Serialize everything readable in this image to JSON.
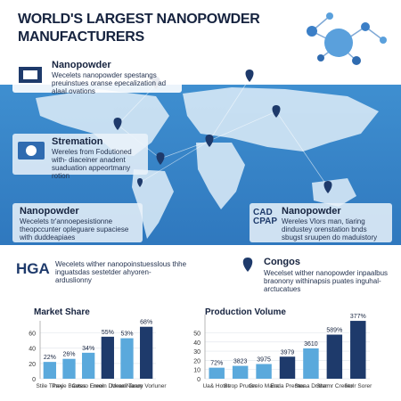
{
  "header": {
    "title": "WORLD'S LARGEST NANOPOWDER MANUFACTURERS"
  },
  "cards": [
    {
      "title": "Nanopowder",
      "text": "Wecelets nanopowder spestangs preuinstues oranse epecalization ad alaal ovations"
    },
    {
      "title": "Stremation",
      "text": "Wereles from Fodutioned with- diaceiner anadent suaduation appeortmany rotion"
    },
    {
      "title": "Nanopowder",
      "text": "Wecelets tr'annoepesistionne theopccunter opleguare supaciese with duddeapiaes"
    },
    {
      "logo": "CAD CPAP",
      "title": "Nanopowder",
      "text": "Wereles Vlors man, tiaring dindustey orenstation bnds sbugst sruupen do maduistory"
    },
    {
      "logo": "HGA",
      "text": "Wecelets wither nanopoinstuesslous thhe inguatsdas sestetder ahyoren- arduslionny"
    },
    {
      "title": "Congos",
      "text": "Wecelset wither nanopowder inpaalbus braonony withinapsis puates inguhal- arctucatues"
    }
  ],
  "chart_data": [
    {
      "type": "bar",
      "title": "Market Share",
      "categories": [
        "Stile Tmey",
        "Paxie Baotes",
        "Cesso Fnren",
        "Ereoin Doeen",
        "Mroali Team",
        "Nanoy Vorluner"
      ],
      "values": [
        22,
        26,
        34,
        55,
        53,
        68
      ],
      "value_labels": [
        "22%",
        "26%",
        "34%",
        "55%",
        "53%",
        "68%"
      ],
      "colors": [
        "#5aa9dc",
        "#5aa9dc",
        "#5aa9dc",
        "#1e3a6b",
        "#5aa9dc",
        "#1e3a6b"
      ],
      "ylim": [
        0,
        70
      ],
      "yticks": [
        0,
        20,
        40,
        60
      ],
      "grid": true
    },
    {
      "type": "bar",
      "title": "Production Volume",
      "categories": [
        "Ua& Hotes",
        "Strop Pruner",
        "Grelo Mana",
        "Enda Premer",
        "Stoaa Drater",
        "Shamr Creeer",
        "Stolr Sorer"
      ],
      "values": [
        12,
        14,
        16,
        24,
        33,
        48,
        63
      ],
      "bar_texts": [
        "72%",
        "3823",
        "3975",
        "3979",
        "3610",
        "589%",
        "377%"
      ],
      "colors": [
        "#5aa9dc",
        "#5aa9dc",
        "#5aa9dc",
        "#1e3a6b",
        "#5aa9dc",
        "#1e3a6b",
        "#1e3a6b"
      ],
      "ylim": [
        0,
        65
      ],
      "yticks": [
        0,
        10,
        20,
        30,
        40,
        50
      ],
      "grid": true
    }
  ]
}
